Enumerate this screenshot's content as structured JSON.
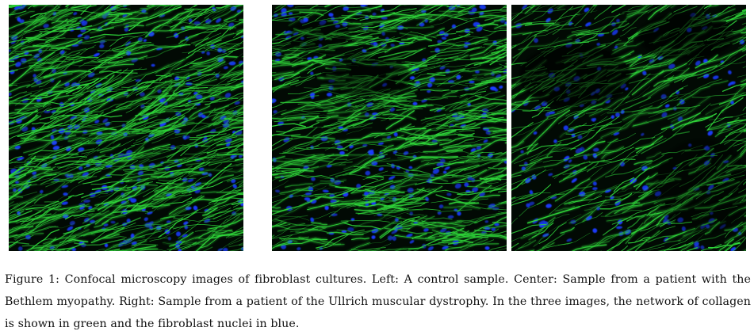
{
  "figure": {
    "panels": [
      {
        "key": "left",
        "description_visible": false
      },
      {
        "key": "center",
        "description_visible": false
      },
      {
        "key": "right",
        "description_visible": false
      }
    ],
    "caption": "Figure 1: Confocal microscopy images of fibroblast cultures. Left: A control sample. Center: Sample from a patient with the Bethlem myopathy. Right: Sample from a patient of the Ullrich muscular dystrophy. In the three images, the network of collagen is shown in green and the fibroblast nuclei in blue."
  },
  "colors": {
    "collagen": "#2fd63a",
    "nuclei": "#1a3cff",
    "background": "#000000"
  }
}
